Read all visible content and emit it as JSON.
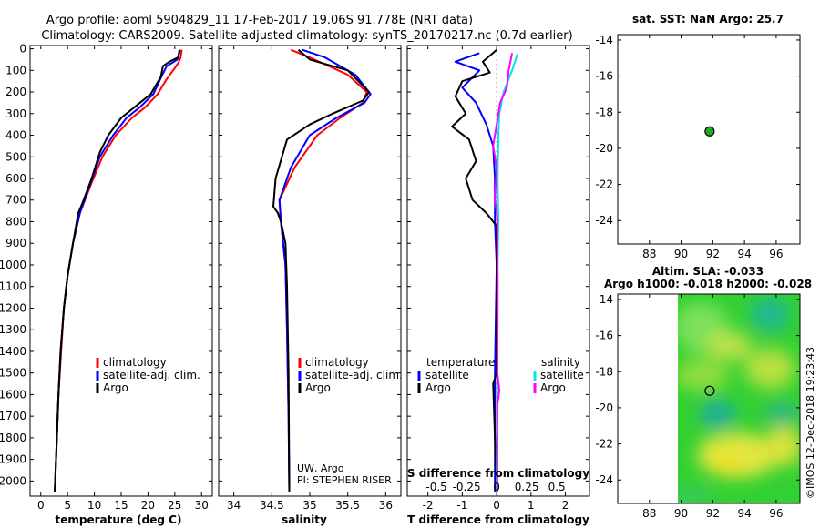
{
  "title": {
    "line1": "Argo profile: aoml 5904829_11 17-Feb-2017 19.06S 91.778E (NRT data)",
    "line2": "Climatology: CARS2009. Satellite-adjusted climatology: synTS_20170217.nc (0.7d earlier)"
  },
  "colors": {
    "climatology": "#ff0000",
    "satellite": "#0000ff",
    "argo": "#000000",
    "sat_salinity": "#00e5e5",
    "argo_salinity": "#ff00ff",
    "map_dot": "#22aa22"
  },
  "chart_data": [
    {
      "type": "line",
      "id": "temperature",
      "xlabel": "temperature (deg C)",
      "ylabel": "",
      "xlim": [
        -2,
        32
      ],
      "ylim": [
        2070,
        -15
      ],
      "xticks": [
        0,
        5,
        10,
        15,
        20,
        25,
        30
      ],
      "yticks": [
        0,
        100,
        200,
        300,
        400,
        500,
        600,
        700,
        800,
        900,
        1000,
        1100,
        1200,
        1300,
        1400,
        1500,
        1600,
        1700,
        1800,
        1900,
        2000
      ],
      "legend": [
        "climatology",
        "satellite-adj. clim.",
        "Argo"
      ],
      "series": [
        {
          "name": "climatology",
          "color": "#ff0000",
          "points": [
            [
              26.3,
              5
            ],
            [
              26.1,
              40
            ],
            [
              25.8,
              60
            ],
            [
              25,
              90
            ],
            [
              23.5,
              140
            ],
            [
              21.8,
              210
            ],
            [
              19.5,
              270
            ],
            [
              17,
              320
            ],
            [
              14,
              400
            ],
            [
              11.5,
              500
            ],
            [
              9.5,
              620
            ],
            [
              7.3,
              760
            ],
            [
              6,
              900
            ],
            [
              5,
              1050
            ],
            [
              4.3,
              1200
            ],
            [
              3.8,
              1400
            ],
            [
              3.3,
              1600
            ],
            [
              3,
              1800
            ],
            [
              2.7,
              2000
            ],
            [
              2.6,
              2050
            ]
          ]
        },
        {
          "name": "satellite-adj. clim.",
          "color": "#0000ff",
          "points": [
            [
              26,
              5
            ],
            [
              25.5,
              50
            ],
            [
              23.5,
              80
            ],
            [
              22.5,
              130
            ],
            [
              21,
              210
            ],
            [
              18.5,
              270
            ],
            [
              16,
              320
            ],
            [
              13.5,
              400
            ],
            [
              11,
              500
            ],
            [
              9.3,
              620
            ],
            [
              7.3,
              760
            ],
            [
              6,
              900
            ],
            [
              5,
              1050
            ],
            [
              4.3,
              1200
            ],
            [
              3.7,
              1400
            ],
            [
              3.3,
              1600
            ],
            [
              3,
              1800
            ],
            [
              2.7,
              2000
            ],
            [
              2.6,
              2050
            ]
          ]
        },
        {
          "name": "Argo",
          "color": "#000000",
          "points": [
            [
              25.9,
              5
            ],
            [
              25.6,
              40
            ],
            [
              24,
              60
            ],
            [
              22.8,
              80
            ],
            [
              22.4,
              130
            ],
            [
              20.5,
              210
            ],
            [
              18,
              260
            ],
            [
              15,
              320
            ],
            [
              13.8,
              360
            ],
            [
              12.6,
              400
            ],
            [
              11,
              480
            ],
            [
              9.5,
              600
            ],
            [
              8,
              700
            ],
            [
              7,
              760
            ],
            [
              6,
              900
            ],
            [
              5,
              1050
            ],
            [
              4.3,
              1200
            ],
            [
              3.7,
              1400
            ],
            [
              3.3,
              1600
            ],
            [
              3,
              1800
            ],
            [
              2.7,
              2000
            ],
            [
              2.6,
              2050
            ]
          ]
        }
      ]
    },
    {
      "type": "line",
      "id": "salinity",
      "xlabel": "salinity",
      "xlim": [
        33.8,
        36.2
      ],
      "ylim": [
        2070,
        -15
      ],
      "xticks": [
        34,
        34.5,
        35,
        35.5,
        36
      ],
      "legend": [
        "climatology",
        "satellite-adj. clim.",
        "Argo"
      ],
      "annotation": [
        "UW, Argo",
        "PI: STEPHEN RISER"
      ],
      "series": [
        {
          "name": "climatology",
          "color": "#ff0000",
          "points": [
            [
              34.75,
              5
            ],
            [
              35,
              40
            ],
            [
              35.5,
              120
            ],
            [
              35.75,
              200
            ],
            [
              35.7,
              250
            ],
            [
              35.4,
              320
            ],
            [
              35.1,
              400
            ],
            [
              34.8,
              550
            ],
            [
              34.6,
              700
            ],
            [
              34.62,
              800
            ],
            [
              34.68,
              1000
            ],
            [
              34.7,
              1300
            ],
            [
              34.72,
              1700
            ],
            [
              34.73,
              2050
            ]
          ]
        },
        {
          "name": "satellite-adj. clim.",
          "color": "#0000ff",
          "points": [
            [
              34.9,
              5
            ],
            [
              35.2,
              40
            ],
            [
              35.6,
              120
            ],
            [
              35.8,
              210
            ],
            [
              35.72,
              250
            ],
            [
              35.35,
              320
            ],
            [
              35,
              400
            ],
            [
              34.75,
              550
            ],
            [
              34.6,
              700
            ],
            [
              34.62,
              800
            ],
            [
              34.68,
              1000
            ],
            [
              34.7,
              1300
            ],
            [
              34.72,
              1700
            ],
            [
              34.73,
              2050
            ]
          ]
        },
        {
          "name": "Argo",
          "color": "#000000",
          "points": [
            [
              34.85,
              5
            ],
            [
              35,
              50
            ],
            [
              35.5,
              100
            ],
            [
              35.78,
              200
            ],
            [
              35.7,
              240
            ],
            [
              35.3,
              300
            ],
            [
              35,
              350
            ],
            [
              34.7,
              420
            ],
            [
              34.55,
              600
            ],
            [
              34.52,
              730
            ],
            [
              34.58,
              760
            ],
            [
              34.62,
              800
            ],
            [
              34.68,
              900
            ],
            [
              34.7,
              1100
            ],
            [
              34.72,
              1500
            ],
            [
              34.73,
              2050
            ]
          ]
        }
      ]
    },
    {
      "type": "line",
      "id": "difference",
      "xlabel": "T difference from climatology",
      "xlabel2": "S difference from climatology",
      "xlim": [
        -2.6,
        2.7
      ],
      "ylim": [
        2070,
        -15
      ],
      "xticks": [
        -2,
        -1,
        0,
        1,
        2
      ],
      "xticklabels": [
        "-2",
        "-1",
        "0",
        "1",
        "2"
      ],
      "sticks": [
        -0.5,
        -0.25,
        0,
        0.25,
        0.5
      ],
      "sticklabels": [
        "-0.5",
        "-0.25",
        "0",
        "0.25",
        "0.5"
      ],
      "legend_t_title": "temperature",
      "legend_s_title": "salinity",
      "legend": [
        "satellite",
        "Argo",
        "satellite",
        "Argo"
      ],
      "series": [
        {
          "name": "T satellite",
          "color": "#0000ff",
          "points": [
            [
              -0.5,
              20
            ],
            [
              -1.2,
              60
            ],
            [
              -0.5,
              100
            ],
            [
              -1,
              180
            ],
            [
              -0.6,
              250
            ],
            [
              -0.3,
              350
            ],
            [
              -0.1,
              450
            ],
            [
              -0.05,
              600
            ],
            [
              -0.05,
              800
            ],
            [
              0,
              1000
            ],
            [
              -0.05,
              1500
            ],
            [
              -0.05,
              2050
            ]
          ]
        },
        {
          "name": "T Argo",
          "color": "#000000",
          "points": [
            [
              0,
              5
            ],
            [
              -0.4,
              60
            ],
            [
              -0.2,
              110
            ],
            [
              -1,
              150
            ],
            [
              -1.2,
              220
            ],
            [
              -0.9,
              300
            ],
            [
              -1.3,
              360
            ],
            [
              -0.8,
              420
            ],
            [
              -0.6,
              520
            ],
            [
              -0.9,
              600
            ],
            [
              -0.7,
              700
            ],
            [
              -0.3,
              760
            ],
            [
              0,
              820
            ],
            [
              0,
              1500
            ],
            [
              -0.1,
              1550
            ],
            [
              0,
              2050
            ]
          ]
        },
        {
          "name": "S satellite",
          "color": "#00e5e5",
          "points": [
            [
              0.6,
              25
            ],
            [
              0.45,
              100
            ],
            [
              0.2,
              200
            ],
            [
              0.08,
              300
            ],
            [
              0.05,
              400
            ],
            [
              0.03,
              600
            ],
            [
              0.05,
              800
            ],
            [
              0.03,
              1000
            ],
            [
              0.02,
              1500
            ],
            [
              0,
              2050
            ]
          ]
        },
        {
          "name": "S Argo",
          "color": "#ff00ff",
          "points": [
            [
              0.45,
              20
            ],
            [
              0.35,
              100
            ],
            [
              0.3,
              180
            ],
            [
              0.1,
              250
            ],
            [
              0,
              350
            ],
            [
              -0.1,
              450
            ],
            [
              0,
              550
            ],
            [
              -0.05,
              700
            ],
            [
              0.02,
              780
            ],
            [
              0.02,
              850
            ],
            [
              0.03,
              1100
            ],
            [
              0.02,
              1500
            ],
            [
              0.08,
              1580
            ],
            [
              0.02,
              1650
            ],
            [
              0.02,
              2050
            ]
          ]
        }
      ]
    },
    {
      "type": "scatter",
      "id": "sst-map",
      "title": "sat. SST: NaN Argo: 25.7",
      "xlim": [
        86,
        97.5
      ],
      "ylim": [
        -25.3,
        -13.7
      ],
      "xticks": [
        88,
        90,
        92,
        94,
        96
      ],
      "yticks": [
        -14,
        -16,
        -18,
        -20,
        -22,
        -24
      ],
      "points": [
        [
          91.8,
          -19.06
        ]
      ]
    },
    {
      "type": "heatmap",
      "id": "sla-map",
      "title1": "Altim. SLA: -0.033",
      "title2": "Argo h1000: -0.018 h2000: -0.028",
      "xlim": [
        86,
        97.5
      ],
      "ylim": [
        -25.3,
        -13.7
      ],
      "xticks": [
        88,
        90,
        92,
        94,
        96
      ],
      "yticks": [
        -14,
        -16,
        -18,
        -20,
        -22,
        -24
      ],
      "data_xrange": [
        90,
        97.5
      ],
      "points": [
        [
          91.8,
          -19.06
        ]
      ]
    }
  ],
  "credit": "©IMOS 12-Dec-2018 19:23:43"
}
